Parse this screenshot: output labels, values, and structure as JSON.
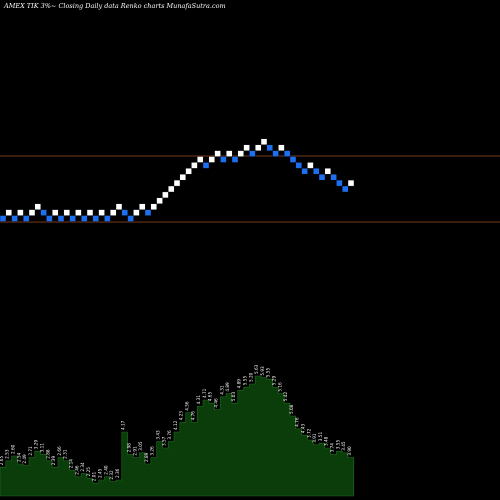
{
  "chart_data": {
    "type": "renko",
    "title": "AMEX TIK 3%~ Closing Daily data Renko charts MunafaSutra.com",
    "price_lines": [
      {
        "name": "upper-band",
        "color": "#a0522d"
      },
      {
        "name": "lower-band",
        "color": "#a0522d"
      }
    ],
    "bricks": [
      {
        "level": 0,
        "dir": "down"
      },
      {
        "level": 1,
        "dir": "up"
      },
      {
        "level": 0,
        "dir": "down"
      },
      {
        "level": 1,
        "dir": "up"
      },
      {
        "level": 0,
        "dir": "down"
      },
      {
        "level": 1,
        "dir": "up"
      },
      {
        "level": 2,
        "dir": "up"
      },
      {
        "level": 1,
        "dir": "down"
      },
      {
        "level": 0,
        "dir": "down"
      },
      {
        "level": 1,
        "dir": "up"
      },
      {
        "level": 0,
        "dir": "down"
      },
      {
        "level": 1,
        "dir": "up"
      },
      {
        "level": 0,
        "dir": "down"
      },
      {
        "level": 1,
        "dir": "up"
      },
      {
        "level": 0,
        "dir": "down"
      },
      {
        "level": 1,
        "dir": "up"
      },
      {
        "level": 0,
        "dir": "down"
      },
      {
        "level": 1,
        "dir": "up"
      },
      {
        "level": 0,
        "dir": "down"
      },
      {
        "level": 1,
        "dir": "up"
      },
      {
        "level": 2,
        "dir": "up"
      },
      {
        "level": 1,
        "dir": "down"
      },
      {
        "level": 0,
        "dir": "down"
      },
      {
        "level": 1,
        "dir": "up"
      },
      {
        "level": 2,
        "dir": "up"
      },
      {
        "level": 1,
        "dir": "down"
      },
      {
        "level": 2,
        "dir": "up"
      },
      {
        "level": 3,
        "dir": "up"
      },
      {
        "level": 4,
        "dir": "up"
      },
      {
        "level": 5,
        "dir": "up"
      },
      {
        "level": 6,
        "dir": "up"
      },
      {
        "level": 7,
        "dir": "up"
      },
      {
        "level": 8,
        "dir": "up"
      },
      {
        "level": 9,
        "dir": "up"
      },
      {
        "level": 10,
        "dir": "up"
      },
      {
        "level": 9,
        "dir": "down"
      },
      {
        "level": 10,
        "dir": "up"
      },
      {
        "level": 11,
        "dir": "up"
      },
      {
        "level": 10,
        "dir": "down"
      },
      {
        "level": 11,
        "dir": "up"
      },
      {
        "level": 10,
        "dir": "down"
      },
      {
        "level": 11,
        "dir": "up"
      },
      {
        "level": 12,
        "dir": "up"
      },
      {
        "level": 11,
        "dir": "down"
      },
      {
        "level": 12,
        "dir": "up"
      },
      {
        "level": 13,
        "dir": "up"
      },
      {
        "level": 12,
        "dir": "down"
      },
      {
        "level": 11,
        "dir": "down"
      },
      {
        "level": 12,
        "dir": "up"
      },
      {
        "level": 11,
        "dir": "down"
      },
      {
        "level": 10,
        "dir": "down"
      },
      {
        "level": 9,
        "dir": "down"
      },
      {
        "level": 8,
        "dir": "down"
      },
      {
        "level": 9,
        "dir": "up"
      },
      {
        "level": 8,
        "dir": "down"
      },
      {
        "level": 7,
        "dir": "down"
      },
      {
        "level": 8,
        "dir": "up"
      },
      {
        "level": 7,
        "dir": "down"
      },
      {
        "level": 6,
        "dir": "down"
      },
      {
        "level": 5,
        "dir": "down"
      },
      {
        "level": 6,
        "dir": "up"
      }
    ],
    "volume": {
      "color": "#0a3d0a",
      "values": [
        0.18,
        0.22,
        0.25,
        0.2,
        0.19,
        0.24,
        0.28,
        0.26,
        0.22,
        0.18,
        0.24,
        0.22,
        0.16,
        0.12,
        0.14,
        0.11,
        0.08,
        0.1,
        0.12,
        0.09,
        0.1,
        0.4,
        0.26,
        0.24,
        0.27,
        0.2,
        0.24,
        0.34,
        0.3,
        0.34,
        0.4,
        0.46,
        0.52,
        0.46,
        0.56,
        0.6,
        0.58,
        0.54,
        0.62,
        0.64,
        0.58,
        0.66,
        0.68,
        0.7,
        0.75,
        0.74,
        0.73,
        0.68,
        0.64,
        0.58,
        0.5,
        0.42,
        0.38,
        0.35,
        0.32,
        0.33,
        0.3,
        0.26,
        0.28,
        0.27,
        0.24
      ],
      "labels": [
        "2.65",
        "2.53",
        "2.60",
        "2.54",
        "2.49",
        "2.71",
        "3.29",
        "3.11",
        "2.88",
        "2.39",
        "2.66",
        "2.31",
        "2.14",
        "2.46",
        "2.34",
        "2.25",
        "2.01",
        "2.45",
        "2.40",
        "2.32",
        "2.36",
        "4.17",
        "2.98",
        "2.91",
        "3.05",
        "2.89",
        "3.26",
        "3.43",
        "3.57",
        "3.76",
        "4.12",
        "4.23",
        "4.56",
        "4.76",
        "4.31",
        "4.71",
        "4.65",
        "4.46",
        "4.31",
        "4.89",
        "5.03",
        "4.89",
        "5.55",
        "5.20",
        "5.63",
        "5.93",
        "5.55",
        "5.29",
        "5.16",
        "5.42",
        "5.08",
        "4.76",
        "4.43",
        "3.72",
        "3.91",
        "3.51",
        "3.48",
        "3.74",
        "3.55",
        "3.45",
        "3.90"
      ]
    }
  }
}
